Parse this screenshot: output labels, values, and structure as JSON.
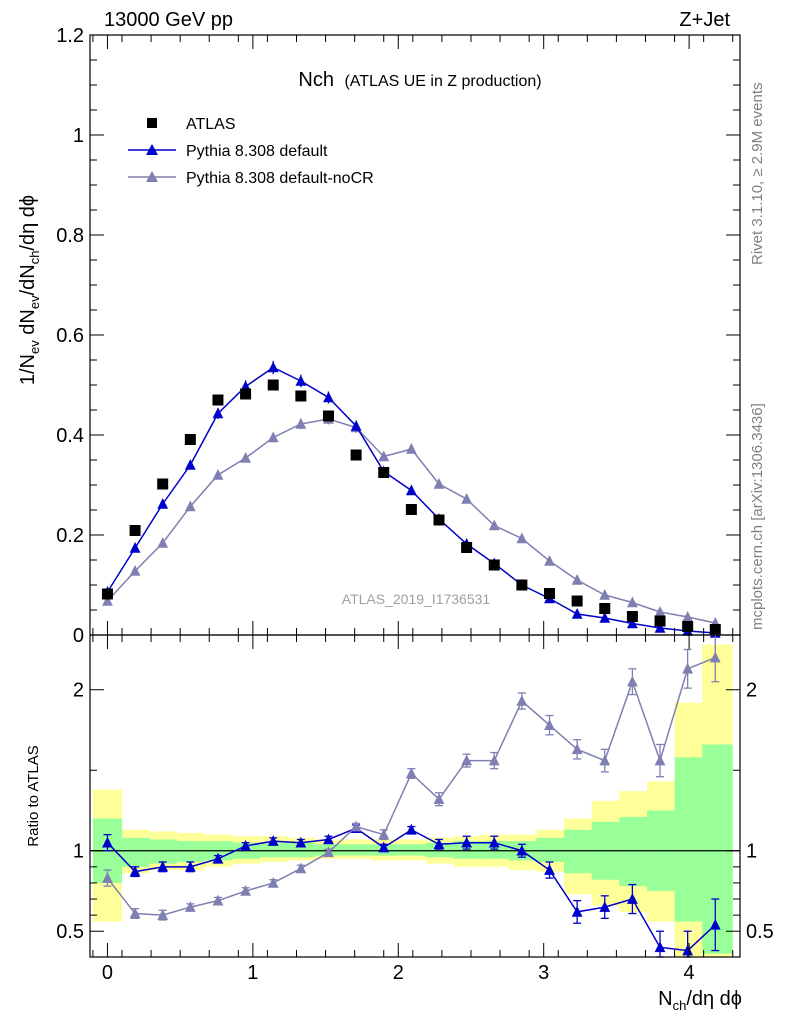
{
  "header": {
    "left": "13000 GeV pp",
    "right": "Z+Jet"
  },
  "title_main": "Nch",
  "title_sub": "(ATLAS UE in Z production)",
  "side_notes": {
    "rivet": "Rivet 3.1.10, ≥ 2.9M events",
    "mcplots": "mcplots.cern.ch [arXiv:1306.3436]"
  },
  "watermark": "ATLAS_2019_I1736531",
  "axes": {
    "ylabel_top": "1/N_ev dN_ev/dN_ch/dη dϕ",
    "ylabel_bottom": "Ratio to ATLAS",
    "xlabel": "N_ch/dη dϕ"
  },
  "colors": {
    "data": "#000000",
    "default": "#0000cc",
    "nocr": "#7f7fb2",
    "band_outer": "#ffff99",
    "band_inner": "#99ff99"
  },
  "chart_data": [
    {
      "type": "scatter",
      "panel": "main",
      "xlim": [
        -0.12,
        4.35
      ],
      "ylim": [
        0,
        1.2
      ],
      "xticks": [
        "0",
        "1",
        "2",
        "3",
        "4"
      ],
      "yticks": [
        "0",
        "0.2",
        "0.4",
        "0.6",
        "0.8",
        "1",
        "1.2"
      ],
      "legend_position": "top-left",
      "x": [
        0.0,
        0.19,
        0.38,
        0.57,
        0.76,
        0.95,
        1.14,
        1.33,
        1.52,
        1.71,
        1.9,
        2.09,
        2.28,
        2.47,
        2.66,
        2.85,
        3.04,
        3.23,
        3.42,
        3.61,
        3.8,
        3.99,
        4.18
      ],
      "series": [
        {
          "name": "ATLAS",
          "marker": "square",
          "values": [
            0.082,
            0.209,
            0.302,
            0.391,
            0.47,
            0.482,
            0.5,
            0.478,
            0.438,
            0.36,
            0.325,
            0.251,
            0.23,
            0.175,
            0.14,
            0.1,
            0.083,
            0.068,
            0.053,
            0.037,
            0.028,
            0.017,
            0.011
          ]
        },
        {
          "name": "Pythia 8.308 default",
          "marker": "triangle",
          "values": [
            0.086,
            0.174,
            0.262,
            0.34,
            0.443,
            0.497,
            0.535,
            0.508,
            0.475,
            0.418,
            0.327,
            0.289,
            0.232,
            0.182,
            0.143,
            0.1,
            0.073,
            0.042,
            0.034,
            0.023,
            0.014,
            0.008,
            0.004
          ]
        },
        {
          "name": "Pythia 8.308 default-noCR",
          "marker": "triangle",
          "values": [
            0.068,
            0.128,
            0.184,
            0.257,
            0.32,
            0.354,
            0.395,
            0.422,
            0.432,
            0.415,
            0.357,
            0.372,
            0.302,
            0.272,
            0.219,
            0.193,
            0.148,
            0.11,
            0.08,
            0.065,
            0.046,
            0.036,
            0.024
          ]
        }
      ]
    },
    {
      "type": "line",
      "panel": "ratio",
      "ylim": [
        0.34,
        2.34
      ],
      "yticks": [
        "0.5",
        "1",
        "2"
      ],
      "x": [
        0.0,
        0.19,
        0.38,
        0.57,
        0.76,
        0.95,
        1.14,
        1.33,
        1.52,
        1.71,
        1.9,
        2.09,
        2.28,
        2.47,
        2.66,
        2.85,
        3.04,
        3.23,
        3.42,
        3.61,
        3.8,
        3.99,
        4.18
      ],
      "series": [
        {
          "name": "Pythia 8.308 default",
          "values": [
            1.05,
            0.87,
            0.9,
            0.9,
            0.95,
            1.03,
            1.06,
            1.05,
            1.07,
            1.14,
            1.02,
            1.13,
            1.04,
            1.05,
            1.05,
            1.0,
            0.88,
            0.62,
            0.65,
            0.7,
            0.4,
            0.38,
            0.54
          ],
          "err": [
            0.05,
            0.03,
            0.03,
            0.03,
            0.02,
            0.02,
            0.02,
            0.02,
            0.02,
            0.02,
            0.02,
            0.02,
            0.03,
            0.04,
            0.04,
            0.04,
            0.05,
            0.07,
            0.07,
            0.09,
            0.1,
            0.12,
            0.16
          ]
        },
        {
          "name": "Pythia 8.308 default-noCR",
          "values": [
            0.83,
            0.61,
            0.6,
            0.65,
            0.69,
            0.75,
            0.8,
            0.89,
            0.99,
            1.15,
            1.1,
            1.48,
            1.32,
            1.56,
            1.56,
            1.93,
            1.78,
            1.63,
            1.56,
            2.05,
            1.56,
            2.13,
            2.2
          ],
          "err": [
            0.05,
            0.03,
            0.03,
            0.02,
            0.02,
            0.02,
            0.02,
            0.02,
            0.02,
            0.02,
            0.03,
            0.03,
            0.04,
            0.04,
            0.05,
            0.05,
            0.06,
            0.06,
            0.07,
            0.08,
            0.1,
            0.12,
            0.15
          ]
        }
      ],
      "bands": {
        "edges": [
          -0.1,
          0.1,
          0.29,
          0.48,
          0.67,
          0.86,
          1.05,
          1.24,
          1.43,
          1.62,
          1.81,
          2.0,
          2.19,
          2.38,
          2.57,
          2.76,
          2.95,
          3.14,
          3.33,
          3.52,
          3.71,
          3.9,
          4.09,
          4.3
        ],
        "outer_low": [
          0.56,
          0.86,
          0.88,
          0.88,
          0.9,
          0.92,
          0.93,
          0.94,
          0.95,
          0.95,
          0.94,
          0.94,
          0.92,
          0.9,
          0.9,
          0.88,
          0.87,
          0.73,
          0.66,
          0.62,
          0.56,
          0.3,
          0.3
        ],
        "outer_high": [
          1.38,
          1.13,
          1.12,
          1.11,
          1.1,
          1.09,
          1.09,
          1.08,
          1.07,
          1.07,
          1.07,
          1.07,
          1.08,
          1.09,
          1.1,
          1.1,
          1.13,
          1.2,
          1.31,
          1.37,
          1.43,
          1.92,
          2.28
        ],
        "inner_low": [
          0.8,
          0.9,
          0.92,
          0.93,
          0.94,
          0.95,
          0.96,
          0.96,
          0.97,
          0.97,
          0.97,
          0.97,
          0.96,
          0.95,
          0.95,
          0.94,
          0.93,
          0.86,
          0.82,
          0.78,
          0.75,
          0.56,
          0.36
        ],
        "inner_high": [
          1.2,
          1.08,
          1.07,
          1.06,
          1.06,
          1.05,
          1.05,
          1.05,
          1.04,
          1.04,
          1.04,
          1.04,
          1.05,
          1.06,
          1.06,
          1.06,
          1.08,
          1.13,
          1.18,
          1.21,
          1.25,
          1.58,
          1.66
        ]
      }
    }
  ],
  "legend": [
    {
      "label": "ATLAS",
      "marker": "square"
    },
    {
      "label": "Pythia 8.308 default",
      "marker": "triangle"
    },
    {
      "label": "Pythia 8.308 default-noCR",
      "marker": "triangle"
    }
  ]
}
